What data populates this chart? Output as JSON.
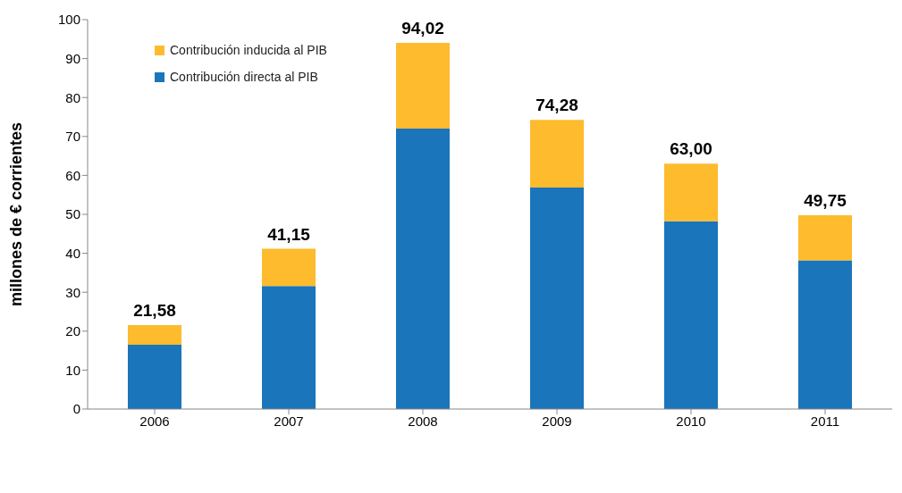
{
  "chart_data": {
    "type": "bar",
    "stacked": true,
    "ylabel": "millones de € corrientes",
    "categories": [
      "2006",
      "2007",
      "2008",
      "2009",
      "2010",
      "2011"
    ],
    "series": [
      {
        "name": "Contribución directa al PIB",
        "color": "#1a75bb",
        "values": [
          16.5,
          31.6,
          72.0,
          56.9,
          48.2,
          38.2
        ]
      },
      {
        "name": "Contribución inducida al PIB",
        "color": "#fdbb2d",
        "values": [
          5.08,
          9.55,
          22.02,
          17.38,
          14.8,
          11.55
        ]
      }
    ],
    "totals": [
      "21,58",
      "41,15",
      "94,02",
      "74,28",
      "63,00",
      "49,75"
    ],
    "ylim": [
      0,
      100
    ],
    "yticks": [
      0,
      10,
      20,
      30,
      40,
      50,
      60,
      70,
      80,
      90,
      100
    ],
    "grid": false,
    "legend": "top left"
  }
}
